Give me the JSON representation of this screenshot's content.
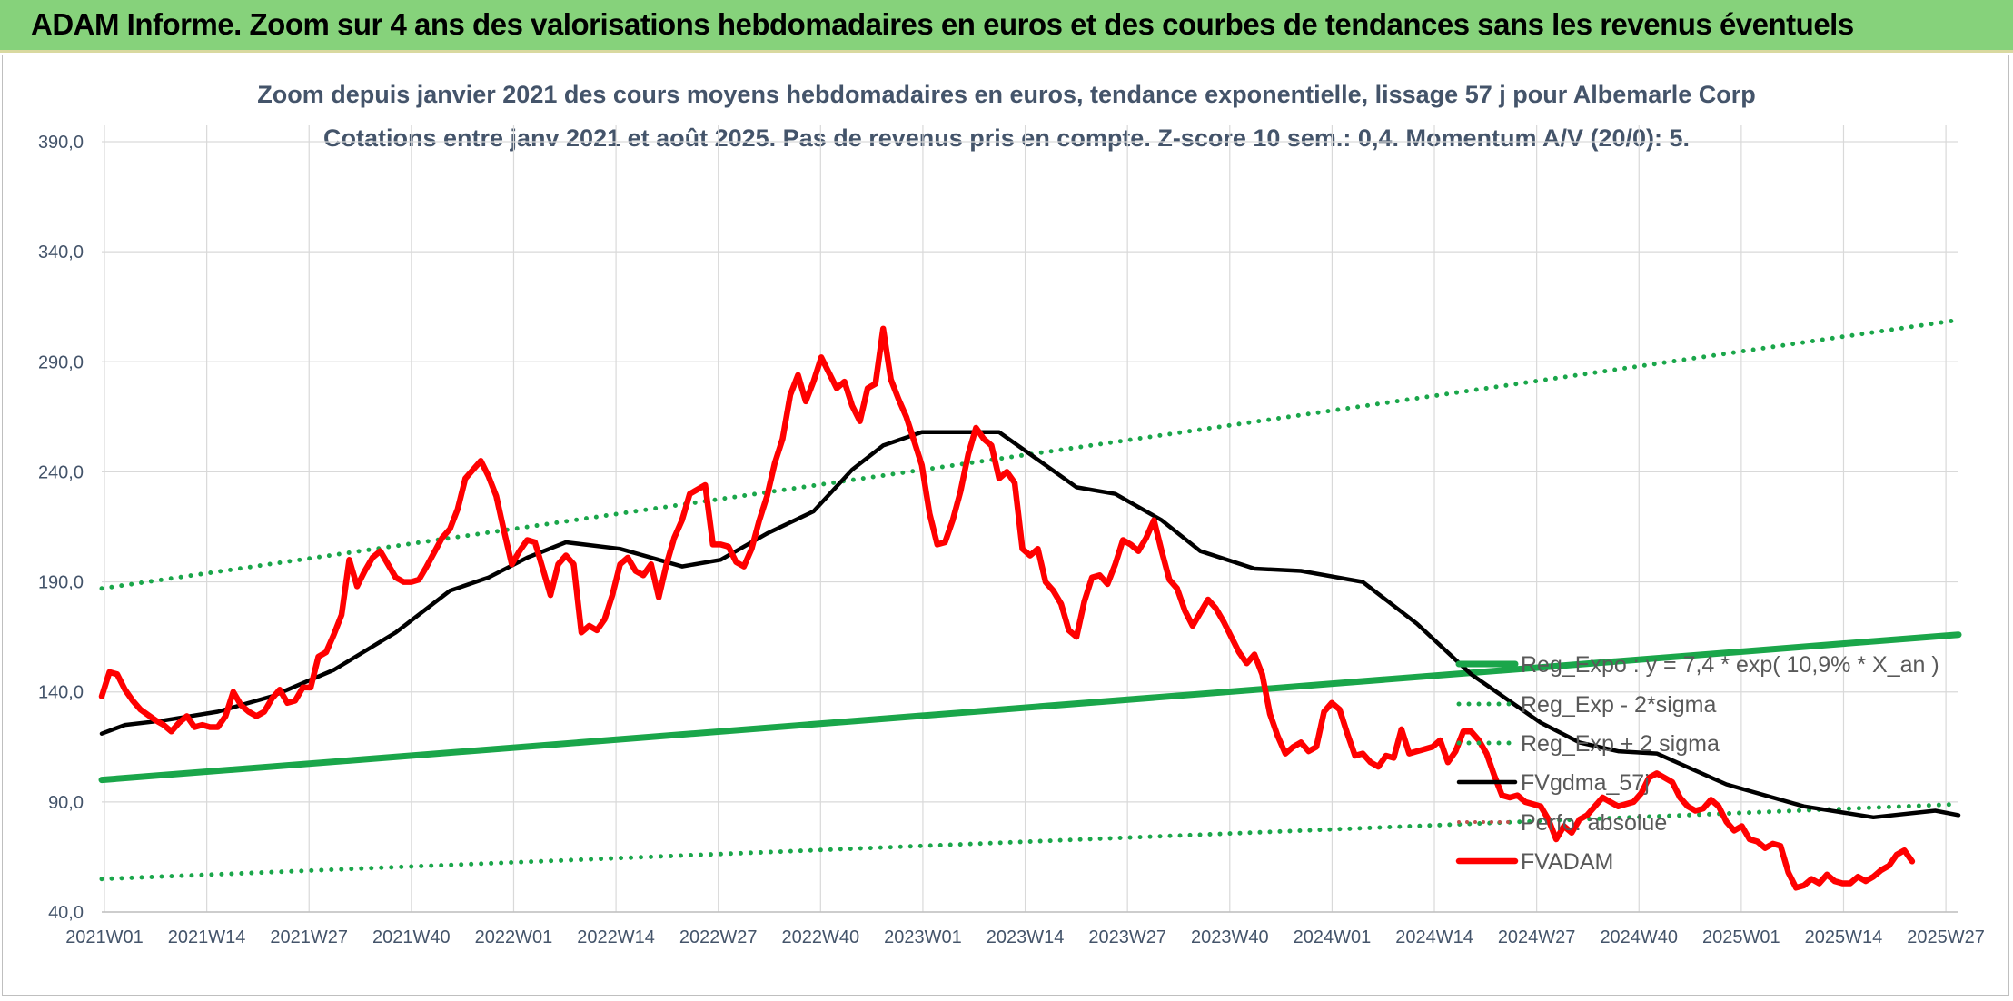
{
  "banner": {
    "title": "ADAM Informe. Zoom sur 4 ans des valorisations hebdomadaires en euros et des courbes de tendances sans les revenus éventuels"
  },
  "chart_data": {
    "type": "line",
    "title": "Zoom depuis janvier 2021 des cours moyens hebdomadaires en euros, tendance exponentielle, lissage 57 j pour Albemarle Corp",
    "subtitle": "Cotations entre janv 2021 et août 2025. Pas de revenus pris en compte. Z-score 10 sem.: 0,4. Momentum A/V (20/0): 5.",
    "xlabel": "",
    "ylabel": "",
    "ylim": [
      40,
      390
    ],
    "yticks": [
      40,
      90,
      140,
      190,
      240,
      290,
      340,
      390
    ],
    "ytick_labels": [
      "40,0",
      "90,0",
      "140,0",
      "190,0",
      "240,0",
      "290,0",
      "340,0",
      "390,0"
    ],
    "xtick_labels": [
      "2021W01",
      "2021W14",
      "2021W27",
      "2021W40",
      "2022W01",
      "2022W14",
      "2022W27",
      "2022W40",
      "2023W01",
      "2023W14",
      "2023W27",
      "2023W40",
      "2024W01",
      "2024W14",
      "2024W27",
      "2024W40",
      "2025W01",
      "2025W14",
      "2025W27"
    ],
    "grid": true,
    "legend_position": "lower-right",
    "colors": {
      "regression": "#1aa64a",
      "smoothed": "#000000",
      "price": "#ff0000",
      "perf": "#c0504d"
    },
    "series": [
      {
        "name": "Reg_Expo : y = 7,4 * exp( 10,9% *  X_an )",
        "style": "solid-green",
        "x": [
          0,
          240
        ],
        "y": [
          100,
          166
        ]
      },
      {
        "name": "Reg_Exp - 2*sigma",
        "style": "dotted-green",
        "x": [
          0,
          240
        ],
        "y": [
          55,
          89
        ]
      },
      {
        "name": "Reg_Exp + 2 sigma",
        "style": "dotted-green",
        "x": [
          0,
          240
        ],
        "y": [
          187,
          309
        ]
      },
      {
        "name": "FVgdma_57j",
        "style": "solid-black",
        "x": [
          0,
          3,
          8,
          15,
          22,
          30,
          38,
          45,
          50,
          55,
          60,
          67,
          75,
          80,
          86,
          92,
          97,
          101,
          106,
          111,
          116,
          120,
          126,
          131,
          137,
          142,
          149,
          155,
          163,
          170,
          177,
          186,
          191,
          196,
          201,
          210,
          220,
          229,
          237,
          240
        ],
        "y": [
          121,
          125,
          127,
          131,
          138,
          150,
          167,
          186,
          192,
          201,
          208,
          205,
          197,
          200,
          212,
          222,
          241,
          252,
          258,
          258,
          258,
          248,
          233,
          230,
          218,
          204,
          196,
          195,
          190,
          171,
          148,
          126,
          117,
          113,
          112,
          98,
          88,
          83,
          86,
          84
        ],
        "points": [
          [
            0,
            121
          ],
          [
            3,
            125
          ],
          [
            8,
            127
          ],
          [
            15,
            131
          ],
          [
            22,
            138
          ],
          [
            30,
            150
          ],
          [
            38,
            167
          ],
          [
            45,
            186
          ],
          [
            50,
            192
          ],
          [
            55,
            201
          ],
          [
            60,
            208
          ],
          [
            67,
            205
          ],
          [
            75,
            197
          ],
          [
            80,
            200
          ],
          [
            86,
            212
          ],
          [
            92,
            222
          ],
          [
            97,
            241
          ],
          [
            101,
            252
          ],
          [
            106,
            258
          ],
          [
            111,
            258
          ],
          [
            116,
            258
          ],
          [
            120,
            248
          ],
          [
            126,
            233
          ],
          [
            131,
            230
          ],
          [
            137,
            218
          ],
          [
            142,
            204
          ],
          [
            149,
            196
          ],
          [
            155,
            195
          ],
          [
            163,
            190
          ],
          [
            170,
            171
          ],
          [
            177,
            148
          ],
          [
            186,
            126
          ],
          [
            191,
            117
          ],
          [
            196,
            113
          ],
          [
            201,
            112
          ],
          [
            210,
            98
          ],
          [
            220,
            88
          ],
          [
            229,
            83
          ],
          [
            237,
            86
          ],
          [
            240,
            84
          ]
        ]
      },
      {
        "name": "Perfo. absolue",
        "style": "dotted-red",
        "x": [],
        "y": []
      },
      {
        "name": "FVADAM",
        "style": "solid-red",
        "points": [
          [
            0,
            138
          ],
          [
            1,
            149
          ],
          [
            2,
            148
          ],
          [
            3,
            141
          ],
          [
            4,
            136
          ],
          [
            5,
            132
          ],
          [
            7,
            127
          ],
          [
            8,
            125
          ],
          [
            9,
            122
          ],
          [
            10,
            126
          ],
          [
            11,
            129
          ],
          [
            12,
            124
          ],
          [
            13,
            125
          ],
          [
            14,
            124
          ],
          [
            15,
            124
          ],
          [
            16,
            129
          ],
          [
            17,
            140
          ],
          [
            18,
            134
          ],
          [
            19,
            131
          ],
          [
            20,
            129
          ],
          [
            21,
            131
          ],
          [
            22,
            137
          ],
          [
            23,
            141
          ],
          [
            24,
            135
          ],
          [
            25,
            136
          ],
          [
            26,
            142
          ],
          [
            27,
            142
          ],
          [
            28,
            156
          ],
          [
            29,
            158
          ],
          [
            30,
            166
          ],
          [
            31,
            175
          ],
          [
            32,
            200
          ],
          [
            33,
            188
          ],
          [
            34,
            195
          ],
          [
            35,
            201
          ],
          [
            36,
            204
          ],
          [
            37,
            198
          ],
          [
            38,
            192
          ],
          [
            39,
            190
          ],
          [
            40,
            190
          ],
          [
            41,
            191
          ],
          [
            42,
            197
          ],
          [
            44,
            210
          ],
          [
            45,
            214
          ],
          [
            46,
            223
          ],
          [
            47,
            237
          ],
          [
            48,
            241
          ],
          [
            49,
            245
          ],
          [
            50,
            238
          ],
          [
            51,
            229
          ],
          [
            52,
            213
          ],
          [
            53,
            198
          ],
          [
            54,
            204
          ],
          [
            55,
            209
          ],
          [
            56,
            208
          ],
          [
            57,
            196
          ],
          [
            58,
            184
          ],
          [
            59,
            198
          ],
          [
            60,
            202
          ],
          [
            61,
            198
          ],
          [
            62,
            167
          ],
          [
            63,
            170
          ],
          [
            64,
            168
          ],
          [
            65,
            173
          ],
          [
            66,
            184
          ],
          [
            67,
            198
          ],
          [
            68,
            201
          ],
          [
            69,
            195
          ],
          [
            70,
            193
          ],
          [
            71,
            198
          ],
          [
            72,
            183
          ],
          [
            73,
            198
          ],
          [
            74,
            210
          ],
          [
            75,
            218
          ],
          [
            76,
            230
          ],
          [
            77,
            232
          ],
          [
            78,
            234
          ],
          [
            79,
            207
          ],
          [
            80,
            207
          ],
          [
            81,
            206
          ],
          [
            82,
            199
          ],
          [
            83,
            197
          ],
          [
            84,
            205
          ],
          [
            85,
            218
          ],
          [
            86,
            229
          ],
          [
            87,
            244
          ],
          [
            88,
            255
          ],
          [
            89,
            275
          ],
          [
            90,
            284
          ],
          [
            91,
            272
          ],
          [
            92,
            281
          ],
          [
            93,
            292
          ],
          [
            94,
            285
          ],
          [
            95,
            278
          ],
          [
            96,
            281
          ],
          [
            97,
            270
          ],
          [
            98,
            263
          ],
          [
            99,
            278
          ],
          [
            100,
            280
          ],
          [
            101,
            305
          ],
          [
            102,
            282
          ],
          [
            103,
            273
          ],
          [
            104,
            265
          ],
          [
            105,
            254
          ],
          [
            106,
            243
          ],
          [
            107,
            221
          ],
          [
            108,
            207
          ],
          [
            109,
            208
          ],
          [
            110,
            218
          ],
          [
            111,
            231
          ],
          [
            112,
            248
          ],
          [
            113,
            260
          ],
          [
            114,
            255
          ],
          [
            115,
            252
          ],
          [
            116,
            237
          ],
          [
            117,
            240
          ],
          [
            118,
            235
          ],
          [
            119,
            205
          ],
          [
            120,
            202
          ],
          [
            121,
            205
          ],
          [
            122,
            190
          ],
          [
            123,
            186
          ],
          [
            124,
            180
          ],
          [
            125,
            168
          ],
          [
            126,
            165
          ],
          [
            127,
            181
          ],
          [
            128,
            192
          ],
          [
            129,
            193
          ],
          [
            130,
            189
          ],
          [
            131,
            198
          ],
          [
            132,
            209
          ],
          [
            133,
            207
          ],
          [
            134,
            204
          ],
          [
            135,
            210
          ],
          [
            136,
            218
          ],
          [
            137,
            204
          ],
          [
            138,
            191
          ],
          [
            139,
            187
          ],
          [
            140,
            177
          ],
          [
            141,
            170
          ],
          [
            142,
            176
          ],
          [
            143,
            182
          ],
          [
            144,
            178
          ],
          [
            145,
            172
          ],
          [
            146,
            165
          ],
          [
            147,
            158
          ],
          [
            148,
            153
          ],
          [
            149,
            157
          ],
          [
            150,
            148
          ],
          [
            151,
            130
          ],
          [
            152,
            120
          ],
          [
            153,
            112
          ],
          [
            154,
            115
          ],
          [
            155,
            117
          ],
          [
            156,
            113
          ],
          [
            157,
            115
          ],
          [
            158,
            131
          ],
          [
            159,
            135
          ],
          [
            160,
            132
          ],
          [
            161,
            121
          ],
          [
            162,
            111
          ],
          [
            163,
            112
          ],
          [
            164,
            108
          ],
          [
            165,
            106
          ],
          [
            166,
            111
          ],
          [
            167,
            110
          ],
          [
            168,
            123
          ],
          [
            169,
            112
          ],
          [
            170,
            113
          ],
          [
            171,
            114
          ],
          [
            172,
            115
          ],
          [
            173,
            118
          ],
          [
            174,
            108
          ],
          [
            175,
            113
          ],
          [
            176,
            122
          ],
          [
            177,
            122
          ],
          [
            178,
            118
          ],
          [
            179,
            112
          ],
          [
            180,
            102
          ],
          [
            181,
            93
          ],
          [
            182,
            92
          ],
          [
            183,
            93
          ],
          [
            184,
            90
          ],
          [
            185,
            89
          ],
          [
            186,
            88
          ],
          [
            187,
            82
          ],
          [
            188,
            73
          ],
          [
            189,
            79
          ],
          [
            190,
            76
          ],
          [
            191,
            82
          ],
          [
            192,
            84
          ],
          [
            193,
            88
          ],
          [
            194,
            92
          ],
          [
            195,
            90
          ],
          [
            196,
            88
          ],
          [
            197,
            89
          ],
          [
            198,
            90
          ],
          [
            199,
            94
          ],
          [
            200,
            101
          ],
          [
            201,
            103
          ],
          [
            202,
            101
          ],
          [
            203,
            99
          ],
          [
            204,
            92
          ],
          [
            205,
            88
          ],
          [
            206,
            86
          ],
          [
            207,
            87
          ],
          [
            208,
            91
          ],
          [
            209,
            88
          ],
          [
            210,
            81
          ],
          [
            211,
            77
          ],
          [
            212,
            79
          ],
          [
            213,
            73
          ],
          [
            214,
            72
          ],
          [
            215,
            69
          ],
          [
            216,
            71
          ],
          [
            217,
            70
          ],
          [
            218,
            58
          ],
          [
            219,
            51
          ],
          [
            220,
            52
          ],
          [
            221,
            55
          ],
          [
            222,
            53
          ],
          [
            223,
            57
          ],
          [
            224,
            54
          ],
          [
            225,
            53
          ],
          [
            226,
            53
          ],
          [
            227,
            56
          ],
          [
            228,
            54
          ],
          [
            229,
            56
          ],
          [
            230,
            59
          ],
          [
            231,
            61
          ],
          [
            232,
            66
          ],
          [
            233,
            68
          ],
          [
            234,
            63
          ]
        ]
      }
    ]
  }
}
